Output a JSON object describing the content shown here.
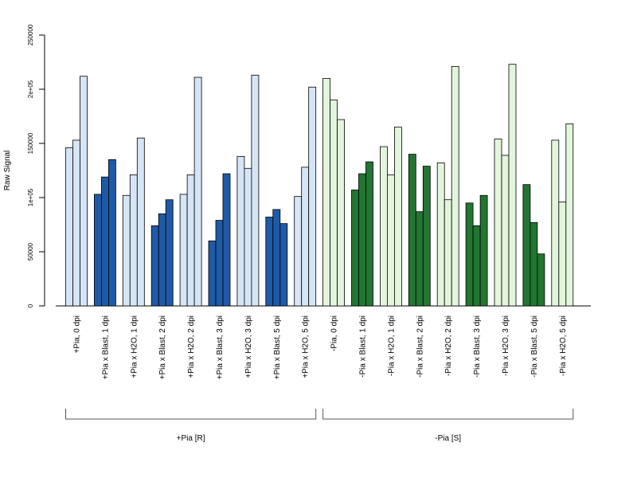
{
  "chart_data": {
    "type": "bar",
    "ylabel": "Raw Signal",
    "ylim": [
      0,
      250000
    ],
    "yticks": [
      {
        "value": 0,
        "label": "0"
      },
      {
        "value": 50000,
        "label": "50000"
      },
      {
        "value": 100000,
        "label": "1e+05"
      },
      {
        "value": 150000,
        "label": "150000"
      },
      {
        "value": 200000,
        "label": "2e+05"
      },
      {
        "value": 250000,
        "label": "250000"
      }
    ],
    "grid": false,
    "categories": [
      "+Pia, 0 dpi",
      "+Pia x Blast, 1 dpi",
      "+Pia x H2O, 1 dpi",
      "+Pia x Blast, 2 dpi",
      "+Pia x H2O, 2 dpi",
      "+Pia x Blast, 3 dpi",
      "+Pia x H2O, 3 dpi",
      "+Pia x Blast, 5 dpi",
      "+Pia x H2O, 5 dpi",
      "-Pia, 0 dpi",
      "-Pia x Blast, 1 dpi",
      "-Pia x H2O, 1 dpi",
      "-Pia x Blast, 2 dpi",
      "-Pia x H2O, 2 dpi",
      "-Pia x Blast, 3 dpi",
      "-Pia x H2O, 3 dpi",
      "-Pia x Blast, 5 dpi",
      "-Pia x H2O, 5 dpi"
    ],
    "replicates": [
      [
        146000,
        153000,
        212000
      ],
      [
        103000,
        119000,
        135000
      ],
      [
        102000,
        121000,
        155000
      ],
      [
        74000,
        85000,
        98000
      ],
      [
        103000,
        121000,
        211000
      ],
      [
        60000,
        79000,
        122000
      ],
      [
        138000,
        127000,
        213000
      ],
      [
        82000,
        89000,
        76000
      ],
      [
        101000,
        128000,
        202000
      ],
      [
        210000,
        190000,
        172000
      ],
      [
        107000,
        122000,
        133000
      ],
      [
        147000,
        121000,
        165000
      ],
      [
        140000,
        87000,
        129000
      ],
      [
        132000,
        98000,
        221000
      ],
      [
        95000,
        74000,
        102000
      ],
      [
        154000,
        139000,
        223000
      ],
      [
        112000,
        77000,
        48000
      ],
      [
        153000,
        96000,
        168000
      ]
    ],
    "bar_colors": [
      "#d6e5f5",
      "#1f5aa6",
      "#d6e5f5",
      "#1f5aa6",
      "#d6e5f5",
      "#1f5aa6",
      "#d6e5f5",
      "#1f5aa6",
      "#d6e5f5",
      "#e3f5dc",
      "#237532",
      "#e3f5dc",
      "#237532",
      "#e3f5dc",
      "#237532",
      "#e3f5dc",
      "#237532",
      "#e3f5dc"
    ],
    "groups": [
      {
        "label": "+Pia [R]",
        "first": 0,
        "last": 8
      },
      {
        "label": "-Pia [S]",
        "first": 9,
        "last": 17
      }
    ]
  }
}
